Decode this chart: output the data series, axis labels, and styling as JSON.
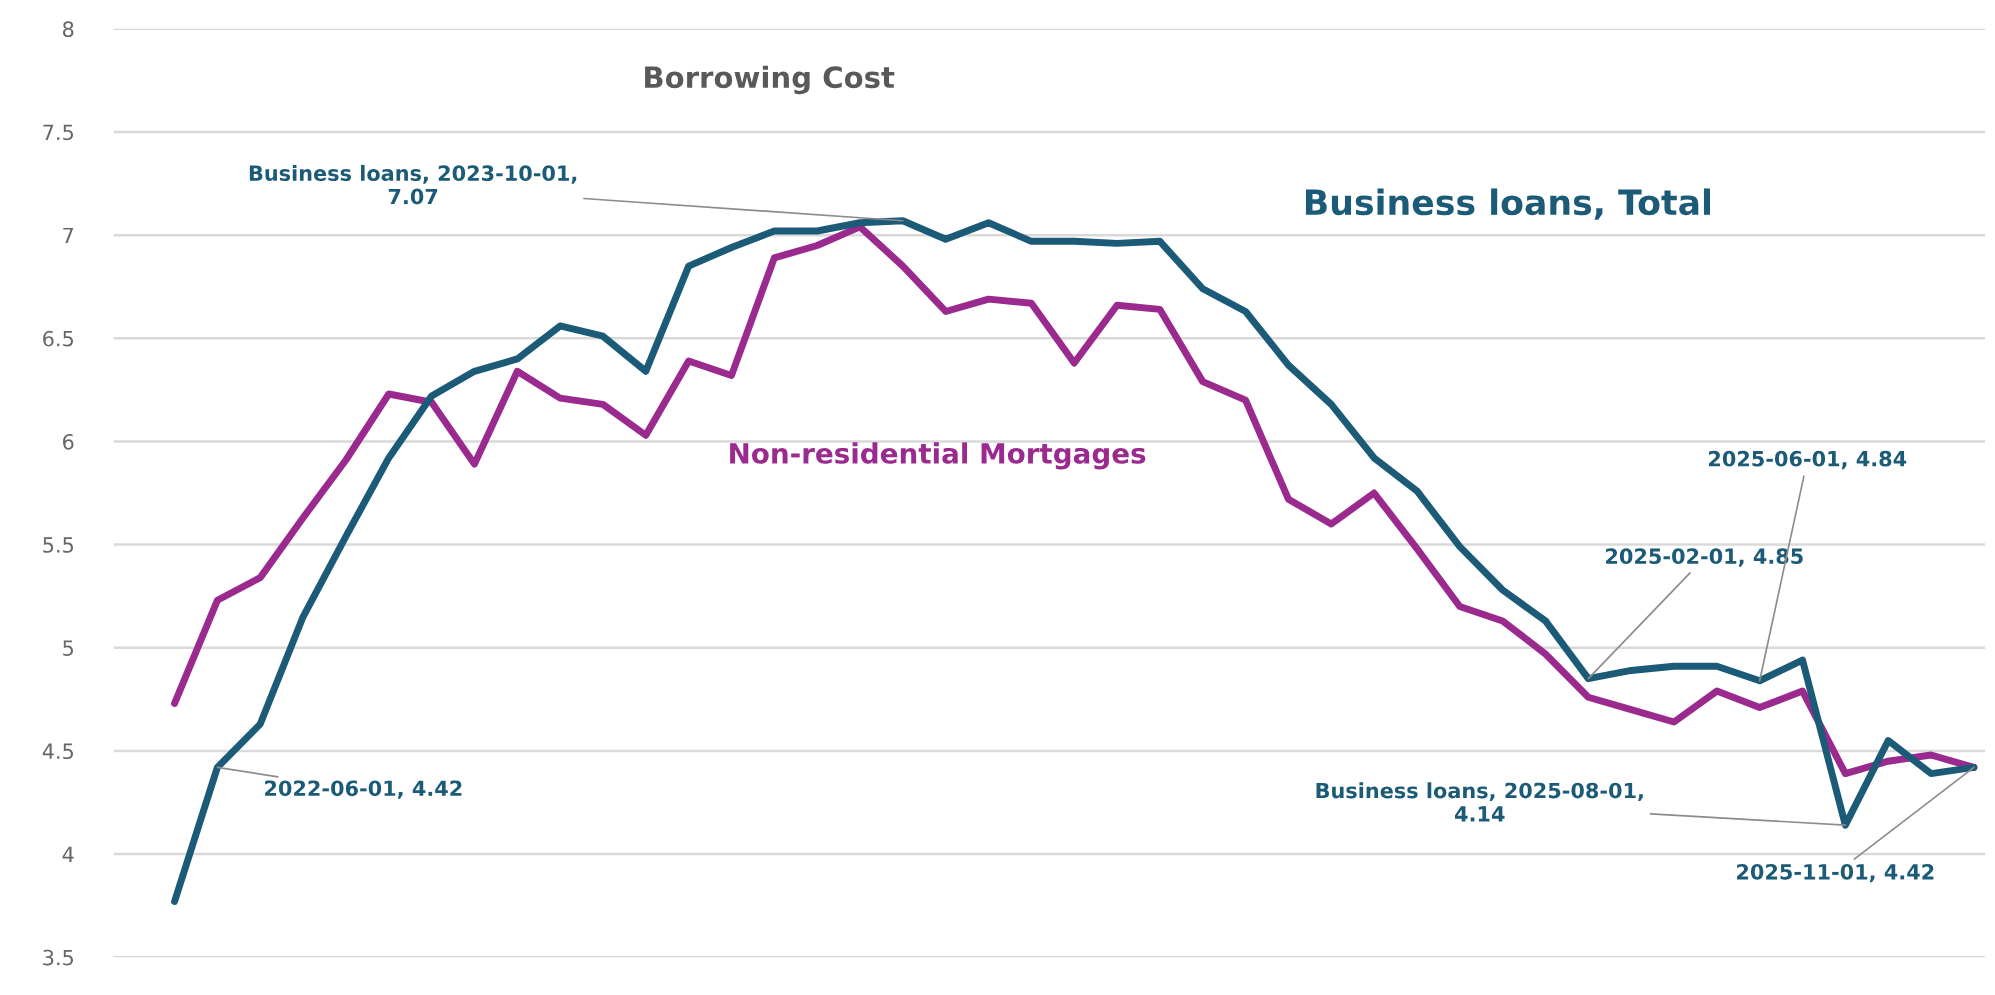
{
  "chart_data": {
    "type": "line",
    "title": "Borrowing Cost",
    "categories": [
      null,
      null,
      null,
      null,
      null,
      null,
      null,
      null,
      null,
      null,
      null,
      null,
      null,
      null,
      null,
      null,
      null,
      null,
      null,
      null,
      null,
      null,
      null,
      null,
      null,
      null,
      null,
      null,
      null,
      null,
      null,
      null,
      null,
      null,
      null,
      null,
      null,
      null,
      null,
      null,
      null,
      null,
      null
    ],
    "series": [
      {
        "name": "Business loans, Total",
        "color": "#1b5b78",
        "values": [
          3.77,
          4.42,
          4.63,
          5.15,
          5.54,
          5.92,
          6.22,
          6.34,
          6.4,
          6.56,
          6.51,
          6.34,
          6.85,
          6.94,
          7.02,
          7.02,
          7.06,
          7.07,
          6.98,
          7.06,
          6.97,
          6.97,
          6.96,
          6.97,
          6.74,
          6.63,
          6.37,
          6.18,
          5.92,
          5.76,
          5.49,
          5.28,
          5.13,
          4.85,
          4.89,
          4.91,
          4.91,
          4.84,
          4.94,
          4.14,
          4.55,
          4.39,
          4.42
        ]
      },
      {
        "name": "Non-residential Mortgages",
        "color": "#9b2a8f",
        "values": [
          4.73,
          5.23,
          5.34,
          5.63,
          5.91,
          6.23,
          6.19,
          5.89,
          6.34,
          6.21,
          6.18,
          6.03,
          6.39,
          6.32,
          6.89,
          6.95,
          7.04,
          6.85,
          6.63,
          6.69,
          6.67,
          6.38,
          6.66,
          6.64,
          6.29,
          6.2,
          5.72,
          5.6,
          5.75,
          5.48,
          5.2,
          5.13,
          4.97,
          4.76,
          4.7,
          4.64,
          4.79,
          4.71,
          4.79,
          4.39,
          4.45,
          4.48,
          4.42
        ]
      }
    ],
    "ylim": [
      3.5,
      8
    ],
    "yticks": [
      {
        "value": 3.5,
        "label": "3.5"
      },
      4,
      {
        "value": 4.5,
        "label": "4.5"
      },
      5,
      {
        "value": 5.5,
        "label": "5.5"
      },
      6,
      {
        "value": 6.5,
        "label": "6.5"
      },
      7,
      {
        "value": 7.5,
        "label": "7.5"
      },
      8
    ],
    "grid": "y",
    "legend": false,
    "marker": "none",
    "line_style": "solid",
    "annotations": [
      "Business loans, 2023-10-01,\n7.07",
      "2022-06-01, 4.42",
      "2025-02-01, 4.85",
      "2025-06-01, 4.84",
      "Business loans, 2025-08-01,\n4.14",
      "2025-11-01, 4.42"
    ]
  }
}
